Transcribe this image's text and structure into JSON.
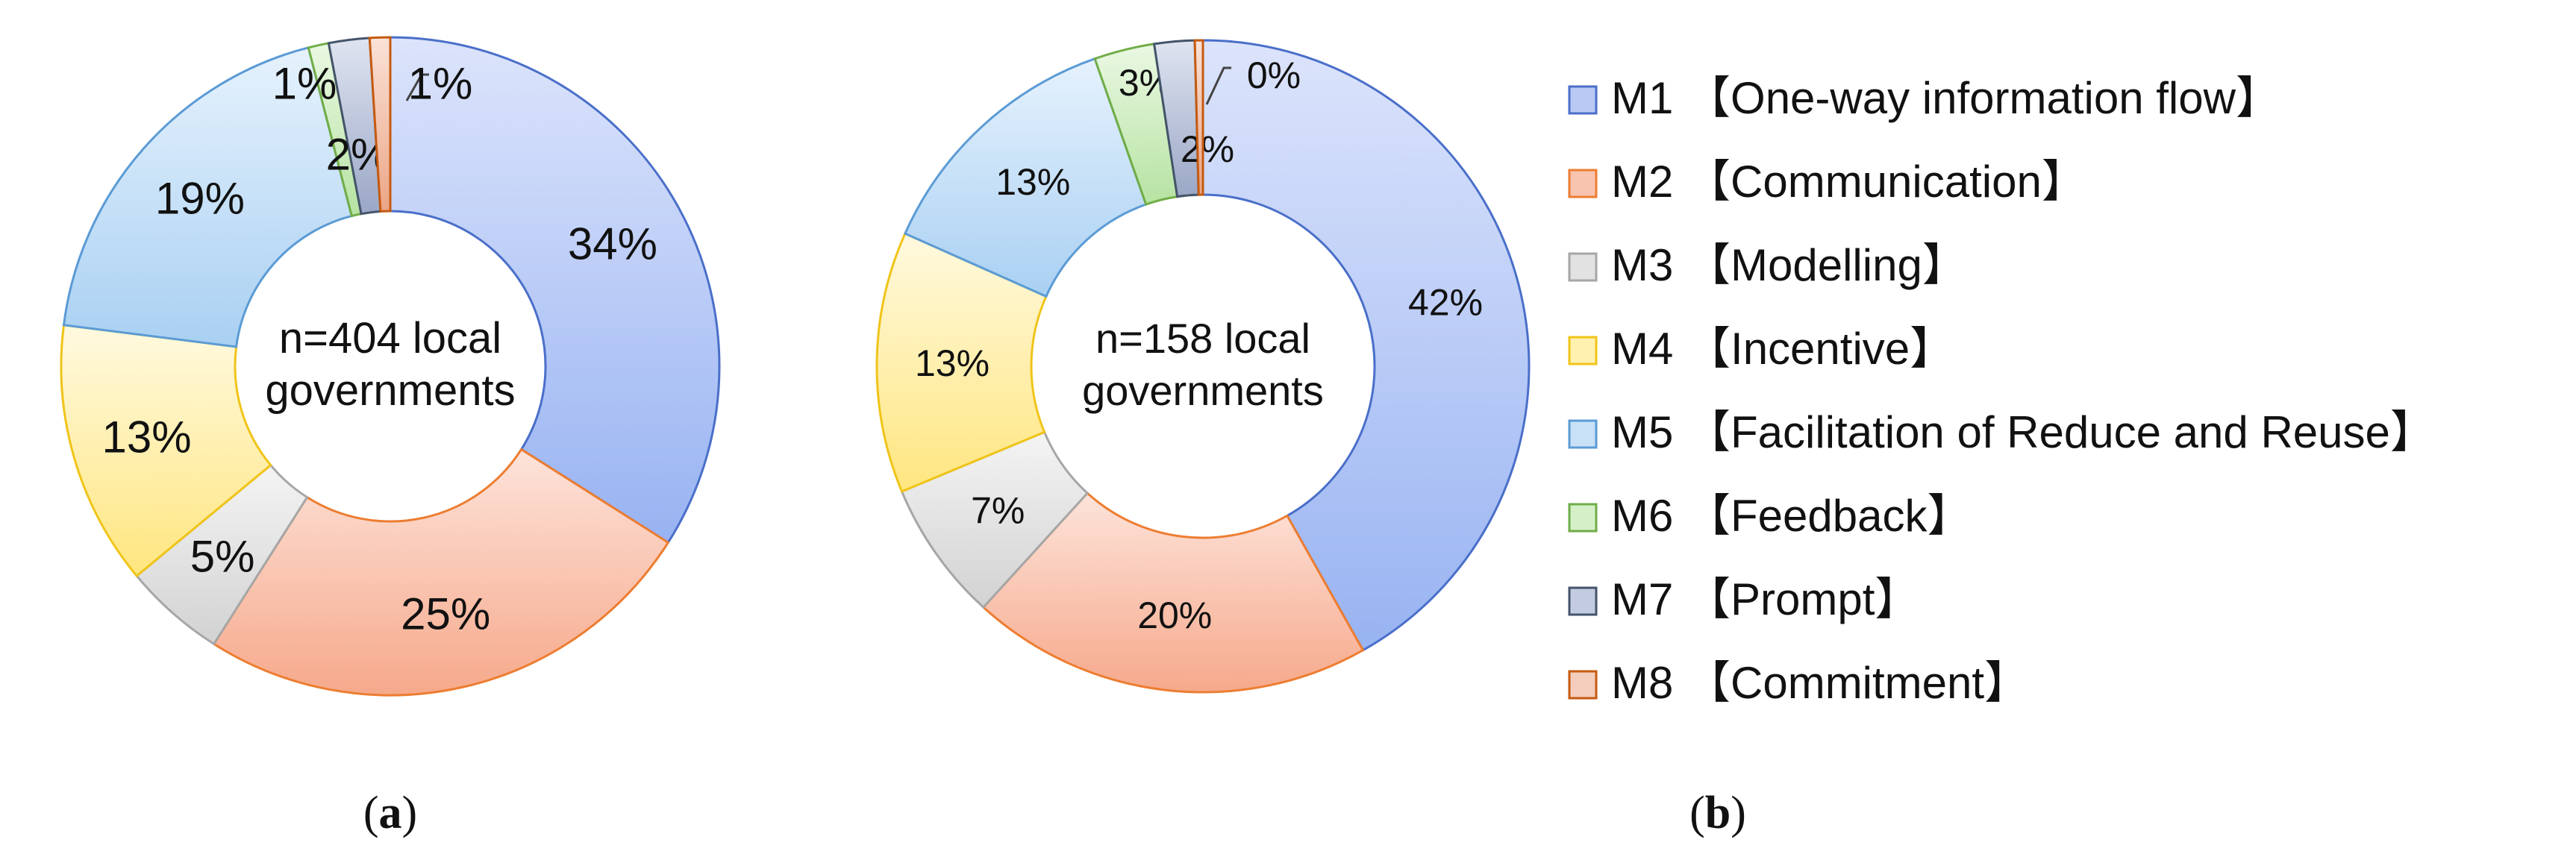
{
  "chart_data": [
    {
      "type": "pie",
      "panel": "(a)",
      "panel_bold": "a",
      "center_label": [
        "n=404 local",
        "governments"
      ],
      "categories": [
        "M1",
        "M2",
        "M3",
        "M4",
        "M5",
        "M6",
        "M7",
        "M8"
      ],
      "values": [
        34,
        25,
        5,
        13,
        19,
        1,
        2,
        1
      ],
      "value_labels": [
        "34%",
        "25%",
        "5%",
        "13%",
        "19%",
        "1%",
        "2%",
        "1%"
      ]
    },
    {
      "type": "pie",
      "panel": "(b)",
      "panel_bold": "b",
      "center_label": [
        "n=158 local",
        "governments"
      ],
      "categories": [
        "M1",
        "M2",
        "M3",
        "M4",
        "M5",
        "M6",
        "M7",
        "M8"
      ],
      "values": [
        42,
        20,
        7,
        13,
        13,
        3,
        2,
        0.4
      ],
      "value_labels": [
        "42%",
        "20%",
        "7%",
        "13%",
        "13%",
        "3%",
        "2%",
        "0%"
      ]
    }
  ],
  "legend": [
    {
      "code": "M1",
      "text": "【One-way information flow】",
      "fill": "#b9c9f4",
      "stroke": "#4a6fc9"
    },
    {
      "code": "M2",
      "text": "【Communication】",
      "fill": "#f8c4b0",
      "stroke": "#ed7d31"
    },
    {
      "code": "M3",
      "text": "【Modelling】",
      "fill": "#e2e2e2",
      "stroke": "#a6a6a6"
    },
    {
      "code": "M4",
      "text": "【Incentive】",
      "fill": "#fff1b0",
      "stroke": "#f0c419"
    },
    {
      "code": "M5",
      "text": "【Facilitation of Reduce and Reuse】",
      "fill": "#c8e1f7",
      "stroke": "#5b9bd5"
    },
    {
      "code": "M6",
      "text": "【Feedback】",
      "fill": "#d5f0c9",
      "stroke": "#70ad47"
    },
    {
      "code": "M7",
      "text": "【Prompt】",
      "fill": "#c3cbe0",
      "stroke": "#44546a"
    },
    {
      "code": "M8",
      "text": "【Commitment】",
      "fill": "#f4cdbc",
      "stroke": "#c55a11"
    }
  ],
  "slice_colors": [
    {
      "light": "#dce4fb",
      "dark": "#98b3f2",
      "stroke": "#4a6fc9"
    },
    {
      "light": "#fde3da",
      "dark": "#f6a98b",
      "stroke": "#ed7d31"
    },
    {
      "light": "#f4f4f4",
      "dark": "#d2d2d2",
      "stroke": "#a6a6a6"
    },
    {
      "light": "#fff9df",
      "dark": "#ffe680",
      "stroke": "#f0c419"
    },
    {
      "light": "#e6f2fd",
      "dark": "#a9d0f2",
      "stroke": "#5b9bd5"
    },
    {
      "light": "#eaf8e3",
      "dark": "#b6e3a2",
      "stroke": "#70ad47"
    },
    {
      "light": "#dfe4f0",
      "dark": "#9aa7c6",
      "stroke": "#44546a"
    },
    {
      "light": "#fae2d7",
      "dark": "#eba585",
      "stroke": "#c55a11"
    }
  ]
}
